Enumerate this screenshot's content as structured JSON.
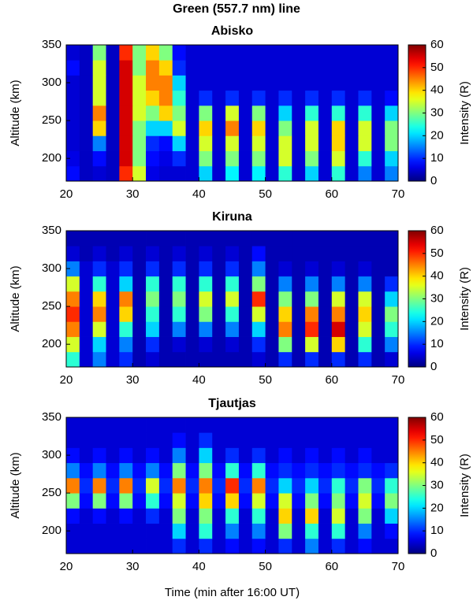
{
  "title": "Green (557.7 nm) line",
  "chart_data": [
    {
      "type": "heatmap",
      "title": "Abisko",
      "ylabel": "Altitude (km)",
      "colorbar_label": "Intensity (R)",
      "colormap": "jet",
      "xbins": [
        20,
        22,
        24,
        26,
        28,
        30,
        32,
        34,
        36,
        38,
        40,
        42,
        44,
        46,
        48,
        50,
        52,
        54,
        56,
        58,
        60,
        62,
        64,
        66,
        68,
        70
      ],
      "ybins": [
        170,
        190,
        210,
        230,
        250,
        270,
        290,
        310,
        330,
        350
      ],
      "values": [
        [
          8,
          4,
          5,
          4,
          50,
          35,
          6,
          5,
          5,
          5,
          20,
          5,
          22,
          5,
          22,
          5,
          25,
          5,
          20,
          5,
          25,
          5,
          15,
          5,
          15
        ],
        [
          6,
          4,
          8,
          4,
          55,
          30,
          8,
          6,
          10,
          5,
          30,
          5,
          30,
          5,
          30,
          5,
          35,
          5,
          30,
          5,
          35,
          5,
          25,
          5,
          20
        ],
        [
          5,
          4,
          15,
          4,
          55,
          30,
          10,
          8,
          20,
          5,
          35,
          5,
          35,
          5,
          35,
          5,
          35,
          5,
          35,
          5,
          40,
          5,
          35,
          5,
          30
        ],
        [
          5,
          4,
          40,
          4,
          55,
          30,
          20,
          20,
          35,
          5,
          40,
          5,
          45,
          5,
          40,
          5,
          30,
          5,
          35,
          5,
          40,
          5,
          35,
          5,
          30
        ],
        [
          5,
          4,
          45,
          4,
          55,
          35,
          30,
          40,
          30,
          5,
          30,
          5,
          35,
          5,
          30,
          5,
          20,
          5,
          25,
          5,
          25,
          5,
          25,
          5,
          20
        ],
        [
          5,
          4,
          35,
          4,
          55,
          35,
          40,
          45,
          25,
          5,
          10,
          5,
          10,
          5,
          10,
          5,
          10,
          5,
          10,
          5,
          10,
          5,
          10,
          5,
          8
        ],
        [
          5,
          4,
          35,
          4,
          55,
          35,
          45,
          45,
          20,
          5,
          5,
          5,
          5,
          5,
          5,
          5,
          5,
          5,
          5,
          5,
          5,
          5,
          5,
          5,
          5
        ],
        [
          8,
          4,
          35,
          4,
          55,
          30,
          45,
          40,
          10,
          5,
          5,
          5,
          5,
          5,
          5,
          5,
          5,
          5,
          5,
          5,
          5,
          5,
          5,
          5,
          5
        ],
        [
          5,
          4,
          30,
          4,
          50,
          30,
          40,
          30,
          8,
          5,
          5,
          5,
          5,
          5,
          5,
          5,
          5,
          5,
          5,
          5,
          5,
          5,
          5,
          5,
          5
        ]
      ],
      "xlim": [
        20,
        70
      ],
      "ylim": [
        170,
        350
      ],
      "xticks": [
        20,
        30,
        40,
        50,
        60,
        70
      ],
      "yticks": [
        200,
        250,
        300,
        350
      ],
      "clim": [
        0,
        60
      ],
      "cticks": [
        0,
        10,
        20,
        30,
        40,
        50,
        60
      ]
    },
    {
      "type": "heatmap",
      "title": "Kiruna",
      "ylabel": "Altitude (km)",
      "colorbar_label": "Intensity (R)",
      "colormap": "jet",
      "xbins": [
        20,
        22,
        24,
        26,
        28,
        30,
        32,
        34,
        36,
        38,
        40,
        42,
        44,
        46,
        48,
        50,
        52,
        54,
        56,
        58,
        60,
        62,
        64,
        66,
        68,
        70
      ],
      "ybins": [
        170,
        190,
        210,
        230,
        250,
        270,
        290,
        310,
        330,
        350
      ],
      "values": [
        [
          25,
          5,
          15,
          5,
          10,
          3,
          5,
          3,
          3,
          3,
          3,
          3,
          3,
          3,
          5,
          3,
          10,
          3,
          10,
          3,
          10,
          3,
          10,
          3,
          5
        ],
        [
          35,
          5,
          20,
          5,
          15,
          3,
          10,
          3,
          5,
          3,
          5,
          3,
          5,
          3,
          10,
          3,
          30,
          3,
          35,
          3,
          40,
          3,
          25,
          3,
          15
        ],
        [
          45,
          5,
          35,
          5,
          25,
          3,
          20,
          3,
          15,
          3,
          15,
          3,
          15,
          3,
          20,
          3,
          45,
          3,
          50,
          3,
          55,
          3,
          35,
          3,
          25
        ],
        [
          50,
          5,
          45,
          5,
          40,
          3,
          25,
          3,
          25,
          3,
          30,
          3,
          25,
          3,
          35,
          3,
          40,
          3,
          45,
          3,
          45,
          3,
          40,
          3,
          30
        ],
        [
          45,
          5,
          40,
          5,
          45,
          3,
          30,
          3,
          30,
          3,
          35,
          3,
          35,
          3,
          50,
          3,
          30,
          3,
          30,
          3,
          35,
          3,
          35,
          3,
          20
        ],
        [
          35,
          5,
          25,
          5,
          20,
          3,
          25,
          3,
          25,
          3,
          25,
          3,
          25,
          3,
          30,
          3,
          15,
          3,
          15,
          3,
          15,
          3,
          15,
          3,
          10
        ],
        [
          15,
          5,
          10,
          5,
          10,
          3,
          10,
          3,
          10,
          3,
          10,
          3,
          10,
          3,
          15,
          3,
          5,
          3,
          5,
          3,
          5,
          3,
          5,
          3,
          3
        ],
        [
          5,
          3,
          5,
          3,
          5,
          3,
          5,
          3,
          5,
          3,
          5,
          3,
          5,
          3,
          8,
          3,
          3,
          3,
          3,
          3,
          3,
          3,
          3,
          3,
          3
        ],
        [
          3,
          3,
          3,
          3,
          3,
          3,
          3,
          3,
          3,
          3,
          3,
          3,
          3,
          3,
          3,
          3,
          3,
          3,
          3,
          3,
          3,
          3,
          3,
          3,
          3
        ]
      ],
      "xlim": [
        20,
        70
      ],
      "ylim": [
        170,
        350
      ],
      "xticks": [
        20,
        30,
        40,
        50,
        60,
        70
      ],
      "yticks": [
        200,
        250,
        300,
        350
      ],
      "clim": [
        0,
        60
      ],
      "cticks": [
        0,
        10,
        20,
        30,
        40,
        50,
        60
      ]
    },
    {
      "type": "heatmap",
      "title": "Tjautjas",
      "ylabel": "Altitude (km)",
      "xlabel": "Time (min after 16:00 UT)",
      "colorbar_label": "Intensity (R)",
      "colormap": "jet",
      "xbins": [
        20,
        22,
        24,
        26,
        28,
        30,
        32,
        34,
        36,
        38,
        40,
        42,
        44,
        46,
        48,
        50,
        52,
        54,
        56,
        58,
        60,
        62,
        64,
        66,
        68,
        70
      ],
      "ybins": [
        170,
        190,
        210,
        230,
        250,
        270,
        290,
        310,
        330,
        350
      ],
      "values": [
        [
          5,
          5,
          5,
          5,
          5,
          5,
          5,
          5,
          10,
          5,
          10,
          5,
          8,
          5,
          8,
          5,
          10,
          5,
          15,
          5,
          10,
          5,
          8,
          5,
          5
        ],
        [
          5,
          5,
          5,
          5,
          5,
          5,
          5,
          5,
          20,
          5,
          25,
          5,
          15,
          5,
          15,
          5,
          30,
          5,
          25,
          5,
          25,
          5,
          15,
          5,
          8
        ],
        [
          8,
          5,
          8,
          5,
          8,
          5,
          10,
          5,
          30,
          5,
          30,
          5,
          25,
          5,
          25,
          5,
          40,
          5,
          40,
          5,
          35,
          5,
          30,
          5,
          20
        ],
        [
          30,
          8,
          30,
          8,
          30,
          8,
          25,
          8,
          35,
          8,
          40,
          8,
          40,
          8,
          35,
          8,
          35,
          8,
          30,
          8,
          30,
          8,
          35,
          8,
          30
        ],
        [
          45,
          10,
          45,
          10,
          45,
          10,
          35,
          10,
          45,
          10,
          45,
          10,
          50,
          10,
          45,
          10,
          20,
          10,
          20,
          10,
          25,
          10,
          30,
          10,
          25
        ],
        [
          15,
          8,
          15,
          8,
          15,
          8,
          15,
          8,
          30,
          8,
          30,
          8,
          25,
          8,
          25,
          8,
          10,
          8,
          10,
          8,
          10,
          8,
          10,
          8,
          10
        ],
        [
          8,
          5,
          8,
          5,
          8,
          5,
          8,
          5,
          15,
          5,
          20,
          5,
          10,
          5,
          10,
          5,
          8,
          5,
          8,
          5,
          8,
          5,
          8,
          5,
          5
        ],
        [
          5,
          5,
          5,
          5,
          5,
          5,
          5,
          5,
          8,
          5,
          10,
          5,
          5,
          5,
          5,
          5,
          5,
          5,
          5,
          5,
          5,
          5,
          5,
          5,
          5
        ],
        [
          5,
          5,
          5,
          5,
          5,
          5,
          5,
          5,
          5,
          5,
          5,
          5,
          5,
          5,
          5,
          5,
          5,
          5,
          5,
          5,
          5,
          5,
          5,
          5,
          5
        ]
      ],
      "xlim": [
        20,
        70
      ],
      "ylim": [
        170,
        350
      ],
      "xticks": [
        20,
        30,
        40,
        50,
        60,
        70
      ],
      "yticks": [
        200,
        250,
        300,
        350
      ],
      "clim": [
        0,
        60
      ],
      "cticks": [
        0,
        10,
        20,
        30,
        40,
        50,
        60
      ]
    }
  ]
}
